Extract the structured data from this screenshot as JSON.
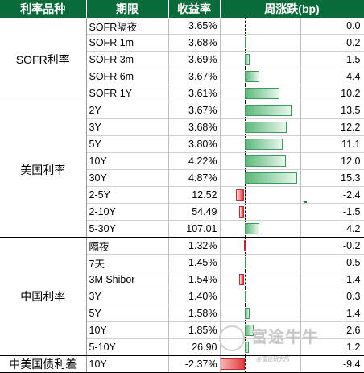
{
  "header": {
    "category": "利率品种",
    "term": "期限",
    "rate": "收益率",
    "change": "周涨跌(bp)"
  },
  "groups": [
    {
      "name": "SOFR利率",
      "rows": [
        {
          "term": "SOFR隔夜",
          "rate": "3.65%",
          "change": "0.0",
          "value": 0.0
        },
        {
          "term": "SOFR 1m",
          "rate": "3.68%",
          "change": "0.2",
          "value": 0.2
        },
        {
          "term": "SOFR 3m",
          "rate": "3.69%",
          "change": "1.5",
          "value": 1.5
        },
        {
          "term": "SOFR 6m",
          "rate": "3.67%",
          "change": "4.4",
          "value": 4.4
        },
        {
          "term": "SOFR 1Y",
          "rate": "3.61%",
          "change": "10.2",
          "value": 10.2
        }
      ]
    },
    {
      "name": "美国利率",
      "rows": [
        {
          "term": "2Y",
          "rate": "3.67%",
          "change": "13.5",
          "value": 13.5
        },
        {
          "term": "3Y",
          "rate": "3.68%",
          "change": "12.2",
          "value": 12.2
        },
        {
          "term": "5Y",
          "rate": "3.80%",
          "change": "11.1",
          "value": 11.1
        },
        {
          "term": "10Y",
          "rate": "4.22%",
          "change": "12.0",
          "value": 12.0
        },
        {
          "term": "30Y",
          "rate": "4.87%",
          "change": "15.3",
          "value": 15.3
        },
        {
          "term": "2-5Y",
          "rate": "12.52",
          "change": "-2.4",
          "value": -2.4
        },
        {
          "term": "2-10Y",
          "rate": "54.49",
          "change": "-1.5",
          "value": -1.5
        },
        {
          "term": "5-30Y",
          "rate": "107.01",
          "change": "4.2",
          "value": 4.2
        }
      ]
    },
    {
      "name": "中国利率",
      "rows": [
        {
          "term": "隔夜",
          "rate": "1.32%",
          "change": "-0.2",
          "value": -0.2
        },
        {
          "term": "7天",
          "rate": "1.45%",
          "change": "0.5",
          "value": 0.5
        },
        {
          "term": "3M Shibor",
          "rate": "1.54%",
          "change": "-1.4",
          "value": -1.4
        },
        {
          "term": "3Y",
          "rate": "1.40%",
          "change": "0.3",
          "value": 0.3
        },
        {
          "term": "5Y",
          "rate": "1.58%",
          "change": "1.4",
          "value": 1.4
        },
        {
          "term": "10Y",
          "rate": "1.85%",
          "change": "2.6",
          "value": 2.6
        },
        {
          "term": "5-10Y",
          "rate": "26.90",
          "change": "1.2",
          "value": 1.2
        }
      ]
    },
    {
      "name": "中美国债利差",
      "rows": [
        {
          "term": "10Y",
          "rate": "-2.37%",
          "change": "-9.4",
          "value": -9.4
        }
      ]
    }
  ],
  "watermark": {
    "text": "富途牛牛",
    "subtext": "@富途研究所",
    "color": "#c8c8c8"
  },
  "colors": {
    "header_bg": "#0a6b3a",
    "positive": "#5cb87a",
    "negative": "#e23a3a"
  }
}
